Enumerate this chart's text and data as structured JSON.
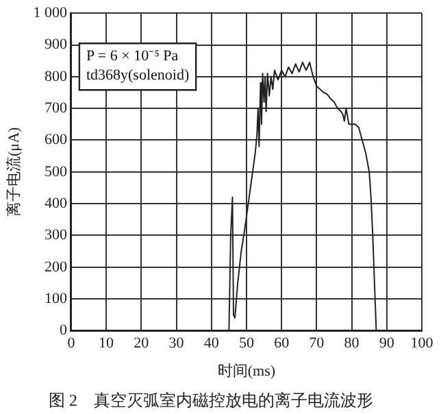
{
  "chart_data": {
    "type": "line",
    "title": "图 2　真空灭弧室内磁控放电的离子电流波形",
    "xlabel": "时间(ms)",
    "ylabel": "离子电流(μA)",
    "annotations": [
      "P = 6 × 10⁻⁵ Pa",
      "td368y(solenoid)"
    ],
    "series": [
      {
        "color": "#222222",
        "x": [
          0,
          44.5,
          45,
          45.5,
          46,
          46.3,
          46.7,
          47.5,
          48.5,
          49.5,
          50.5,
          51.5,
          52.5,
          53,
          53.3,
          53.6,
          54,
          54.3,
          54.6,
          55,
          55.3,
          55.6,
          56,
          56.5,
          57,
          57.5,
          58,
          59,
          60,
          61,
          62,
          63,
          64,
          65,
          66,
          67,
          68,
          69,
          70,
          71,
          72,
          73,
          74,
          75,
          76,
          77,
          77.5,
          77.9,
          78.4,
          79.2,
          81,
          82,
          83,
          84,
          85,
          85.5,
          86,
          86.5,
          87,
          100
        ],
        "values": [
          0,
          0,
          0,
          300,
          420,
          50,
          40,
          150,
          250,
          320,
          400,
          480,
          560,
          620,
          700,
          580,
          780,
          650,
          810,
          720,
          800,
          690,
          810,
          740,
          800,
          760,
          820,
          790,
          820,
          800,
          830,
          810,
          840,
          815,
          845,
          820,
          845,
          800,
          770,
          760,
          750,
          745,
          730,
          720,
          700,
          690,
          680,
          660,
          700,
          650,
          650,
          640,
          600,
          560,
          500,
          420,
          300,
          150,
          0,
          0
        ]
      }
    ],
    "xlim": [
      0,
      100
    ],
    "xticks": [
      0,
      10,
      20,
      30,
      40,
      50,
      60,
      70,
      80,
      90,
      100
    ],
    "ylim": [
      0,
      1000
    ],
    "yticks": [
      0,
      100,
      200,
      300,
      400,
      500,
      600,
      700,
      800,
      900,
      {
        "value": 1000,
        "label": "1 000"
      }
    ],
    "grid": true,
    "legend": false,
    "marker": "none",
    "line_style": "solid"
  }
}
